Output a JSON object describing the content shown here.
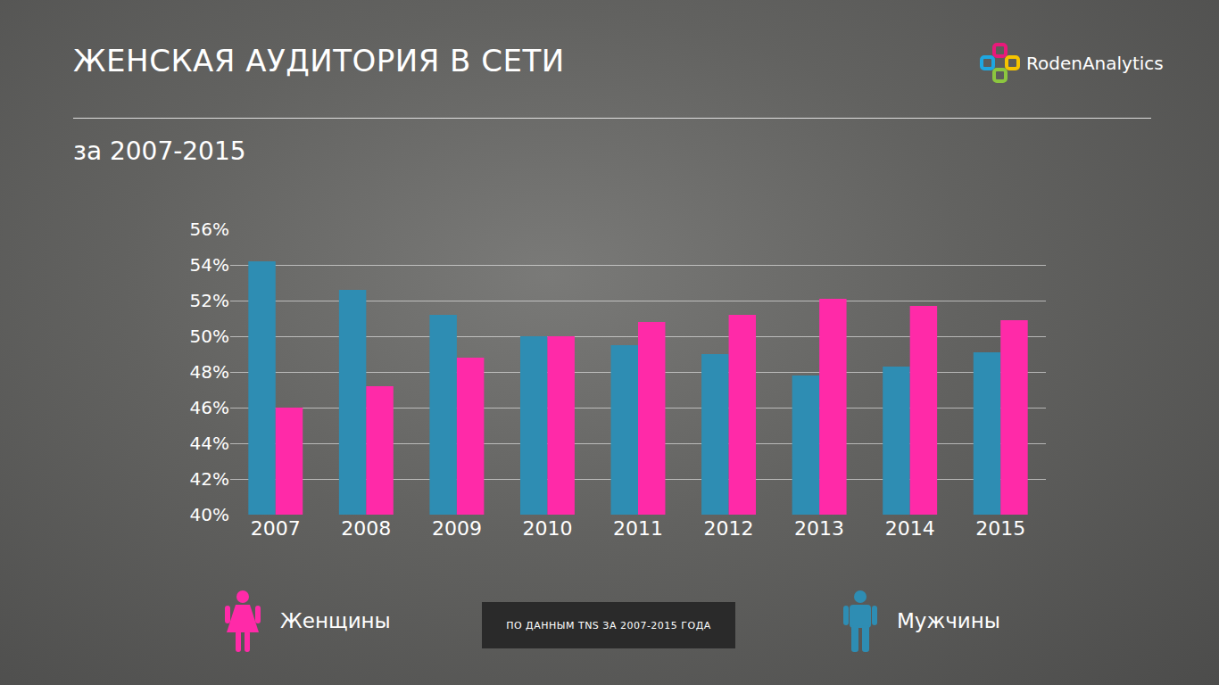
{
  "chart_data": {
    "type": "bar",
    "title": "ЖЕНСКАЯ АУДИТОРИЯ В СЕТИ",
    "subtitle": "за 2007-2015",
    "logo": "RodenAnalytics",
    "source": "ПО ДАННЫМ TNS ЗА 2007-2015 ГОДА",
    "categories": [
      "2007",
      "2008",
      "2009",
      "2010",
      "2011",
      "2012",
      "2013",
      "2014",
      "2015"
    ],
    "series": [
      {
        "name": "Мужчины",
        "color": "#2e8db3",
        "values": [
          54.2,
          52.6,
          51.2,
          50.0,
          49.5,
          49.0,
          47.8,
          48.3,
          49.1
        ]
      },
      {
        "name": "Женщины",
        "color": "#ff2aa8",
        "values": [
          46.0,
          47.2,
          48.8,
          50.0,
          50.8,
          51.2,
          52.1,
          51.7,
          50.9
        ]
      }
    ],
    "ylim": [
      40,
      56
    ],
    "yticks": [
      {
        "value": 40,
        "label": "40%"
      },
      {
        "value": 42,
        "label": "42%"
      },
      {
        "value": 44,
        "label": "44%"
      },
      {
        "value": 46,
        "label": "46%"
      },
      {
        "value": 48,
        "label": "48%"
      },
      {
        "value": 50,
        "label": "50%"
      },
      {
        "value": 52,
        "label": "52%"
      },
      {
        "value": 54,
        "label": "54%"
      },
      {
        "value": 56,
        "label": "56%"
      }
    ],
    "grid": true,
    "legend": "bottom"
  }
}
